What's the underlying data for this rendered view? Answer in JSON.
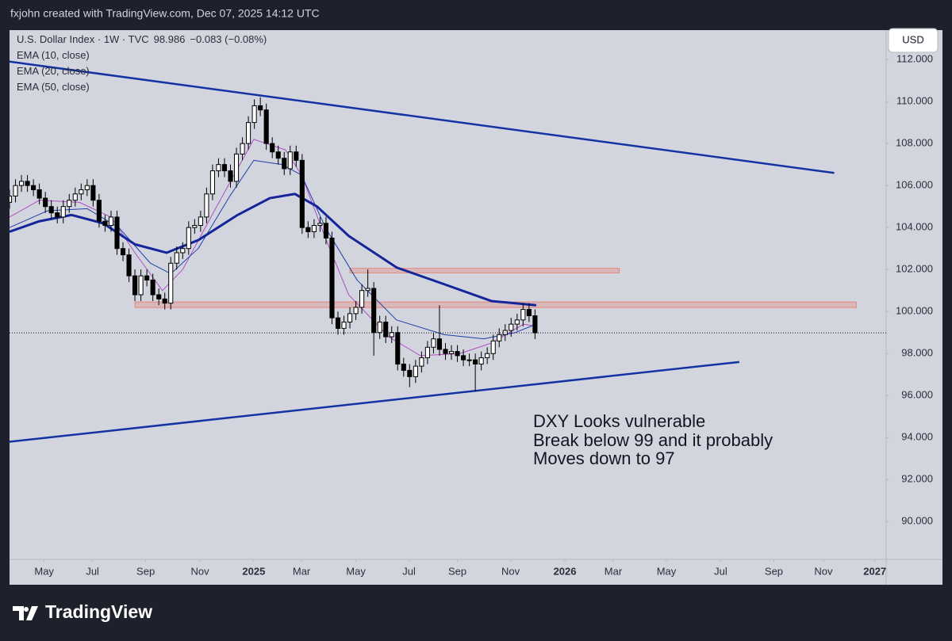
{
  "header": {
    "credit": "fxjohn created with TradingView.com, Dec 07, 2025 14:12 UTC"
  },
  "footer": {
    "brand": "TradingView"
  },
  "chart_data": {
    "type": "candlestick",
    "symbol": "U.S. Dollar Index · 1W · TVC",
    "last": 98.986,
    "change": "−0.083 (−0.08%)",
    "currency": "USD",
    "up_color": "#ffffff",
    "down_color": "#000000",
    "x": [
      0,
      1,
      2,
      3,
      4,
      5,
      6,
      7,
      8,
      9,
      10,
      11,
      12,
      13,
      14,
      15,
      16,
      17,
      18,
      19,
      20,
      21,
      22,
      23,
      24,
      25,
      26,
      27,
      28,
      29,
      30,
      31,
      32,
      33,
      34,
      35,
      36,
      37,
      38,
      39,
      40,
      41,
      42,
      43,
      44,
      45,
      46,
      47,
      48,
      49,
      50,
      51,
      52,
      53,
      54,
      55,
      56,
      57,
      58,
      59,
      60,
      61,
      62,
      63,
      64,
      65,
      66,
      67,
      68,
      69,
      70,
      71,
      72,
      73,
      74,
      75,
      76,
      77,
      78,
      79,
      80,
      81,
      82,
      83,
      84,
      85,
      86,
      87,
      88
    ],
    "open": [
      105.2,
      105.5,
      106.0,
      106.2,
      106.0,
      105.8,
      105.4,
      105.0,
      104.7,
      104.5,
      105.0,
      105.3,
      105.6,
      105.8,
      106.0,
      105.3,
      104.3,
      104.1,
      104.5,
      103.0,
      102.7,
      101.7,
      100.8,
      101.7,
      101.5,
      100.8,
      100.6,
      100.4,
      102.3,
      102.8,
      103.0,
      104.0,
      104.1,
      104.5,
      105.6,
      106.7,
      107.0,
      106.7,
      106.2,
      107.5,
      108.0,
      109.0,
      109.8,
      109.6,
      108.0,
      107.6,
      107.3,
      106.8,
      107.6,
      107.2,
      104.0,
      103.8,
      104.1,
      104.2,
      103.5,
      99.7,
      99.2,
      99.5,
      99.9,
      100.2,
      101.0,
      101.1,
      99.0,
      99.5,
      98.8,
      99.0,
      97.5,
      97.2,
      96.9,
      97.4,
      97.8,
      98.3,
      98.7,
      98.2,
      98.0,
      98.1,
      97.9,
      97.7,
      97.7,
      97.5,
      97.8,
      98.0,
      98.6,
      98.9,
      99.1,
      99.4,
      99.6,
      100.1,
      99.8
    ],
    "high": [
      105.8,
      106.3,
      106.5,
      106.5,
      106.3,
      106.1,
      105.7,
      105.3,
      105.0,
      105.3,
      105.6,
      105.9,
      106.1,
      106.3,
      106.3,
      105.6,
      104.6,
      104.8,
      104.8,
      103.3,
      103.0,
      102.0,
      102.0,
      102.0,
      101.8,
      101.1,
      100.9,
      102.6,
      103.1,
      103.3,
      104.3,
      104.4,
      104.8,
      105.9,
      107.0,
      107.3,
      107.3,
      107.0,
      107.8,
      108.3,
      109.3,
      110.1,
      110.2,
      109.9,
      108.3,
      107.9,
      107.6,
      107.9,
      107.9,
      107.5,
      104.3,
      104.4,
      104.5,
      104.5,
      103.8,
      100.0,
      99.8,
      100.2,
      100.5,
      101.3,
      102.0,
      101.4,
      99.8,
      99.8,
      99.3,
      99.3,
      97.8,
      97.5,
      97.7,
      98.1,
      98.6,
      99.0,
      100.3,
      98.5,
      98.4,
      98.4,
      98.2,
      98.0,
      98.0,
      98.1,
      98.3,
      98.9,
      99.2,
      99.4,
      99.7,
      99.9,
      100.4,
      100.4,
      100.1
    ],
    "low": [
      104.9,
      105.2,
      105.7,
      105.7,
      105.5,
      105.1,
      104.7,
      104.4,
      104.2,
      104.2,
      104.7,
      105.0,
      105.3,
      105.5,
      105.0,
      104.0,
      103.8,
      103.8,
      102.7,
      102.4,
      101.4,
      100.5,
      100.5,
      101.2,
      100.5,
      100.3,
      100.1,
      100.1,
      102.0,
      102.5,
      102.7,
      103.7,
      103.8,
      104.2,
      105.3,
      106.4,
      106.4,
      105.9,
      105.9,
      107.2,
      107.7,
      108.7,
      109.3,
      107.7,
      107.3,
      107.0,
      106.5,
      106.5,
      106.9,
      103.7,
      103.5,
      103.5,
      103.8,
      103.2,
      99.4,
      98.9,
      98.9,
      99.2,
      99.6,
      99.9,
      100.7,
      97.9,
      98.7,
      98.5,
      98.5,
      97.2,
      96.9,
      96.4,
      96.6,
      97.1,
      97.5,
      98.0,
      97.9,
      97.7,
      97.7,
      97.6,
      97.4,
      97.4,
      96.2,
      97.2,
      97.5,
      97.7,
      98.3,
      98.6,
      98.8,
      99.1,
      99.3,
      99.5,
      98.69
    ],
    "close": [
      105.5,
      106.0,
      106.2,
      106.0,
      105.8,
      105.4,
      105.0,
      104.7,
      104.5,
      105.0,
      105.3,
      105.6,
      105.8,
      106.0,
      105.3,
      104.3,
      104.1,
      104.5,
      103.0,
      102.7,
      101.7,
      100.8,
      101.7,
      101.5,
      100.8,
      100.6,
      100.4,
      102.3,
      102.8,
      103.0,
      104.0,
      104.1,
      104.5,
      105.6,
      106.7,
      107.0,
      106.7,
      106.2,
      107.5,
      108.0,
      109.0,
      109.8,
      109.6,
      108.0,
      107.6,
      107.3,
      106.8,
      107.6,
      107.2,
      104.0,
      103.8,
      104.1,
      104.2,
      103.5,
      99.7,
      99.2,
      99.5,
      99.9,
      100.2,
      101.0,
      101.1,
      99.0,
      99.5,
      98.8,
      99.0,
      97.5,
      97.2,
      96.9,
      97.4,
      97.8,
      98.3,
      98.7,
      98.2,
      98.0,
      98.1,
      97.9,
      97.7,
      97.7,
      97.5,
      97.8,
      98.0,
      98.6,
      98.9,
      99.1,
      99.4,
      99.6,
      100.1,
      99.8,
      98.99
    ],
    "indicators": [
      {
        "name": "EMA (10, close)",
        "color": "#b04fc4",
        "width": 1,
        "x": [
          0,
          5.0,
          11.7,
          17.0,
          21.0,
          25.6,
          29.0,
          34.3,
          40.9,
          46.2,
          48.9,
          52.9,
          56.8,
          63.5,
          68.8,
          75.4,
          80.7,
          86.1,
          88.2
        ],
        "values": [
          104.5,
          105.3,
          105.2,
          104.5,
          102.8,
          101.0,
          102.0,
          104.8,
          108.2,
          107.7,
          106.5,
          103.5,
          100.8,
          98.8,
          97.9,
          98.0,
          98.5,
          99.4,
          99.3
        ]
      },
      {
        "name": "EMA (20, close)",
        "color": "#1f3fa8",
        "width": 1,
        "x": [
          0,
          6.4,
          13.0,
          18.3,
          23.6,
          27.0,
          31.6,
          36.9,
          40.9,
          45.6,
          48.9,
          52.9,
          58.2,
          64.8,
          72.8,
          79.4,
          84.7,
          88.2
        ],
        "values": [
          104.0,
          104.8,
          104.9,
          104.0,
          102.3,
          101.8,
          103.0,
          105.5,
          107.2,
          107.0,
          106.5,
          104.0,
          101.5,
          99.6,
          98.9,
          98.7,
          99.0,
          99.4
        ]
      },
      {
        "name": "EMA (50, close)",
        "color": "#14259a",
        "width": 3,
        "x": [
          0,
          5.0,
          10.4,
          15.7,
          21.0,
          26.3,
          31.6,
          38.2,
          43.6,
          47.8,
          51.5,
          56.8,
          64.8,
          72.8,
          80.7,
          88.2
        ],
        "values": [
          103.8,
          104.3,
          104.6,
          104.2,
          103.2,
          102.8,
          103.4,
          104.6,
          105.4,
          105.6,
          105.0,
          103.6,
          102.1,
          101.3,
          100.5,
          100.3
        ]
      }
    ],
    "trendlines": [
      {
        "color": "#1433a3",
        "x": [
          0,
          138.1
        ],
        "values": [
          111.9,
          106.6
        ]
      },
      {
        "color": "#1433a3",
        "x": [
          0,
          122.2
        ],
        "values": [
          93.8,
          97.6
        ]
      }
    ],
    "zones": [
      {
        "color": "#e8857a",
        "x": [
          57.0,
          102.1
        ],
        "values": [
          101.9,
          102.0
        ]
      },
      {
        "color": "#e8857a",
        "x": [
          21.0,
          141.8
        ],
        "values": [
          100.25,
          100.4
        ]
      }
    ],
    "annotation": [
      "DXY Looks vulnerable",
      "Break below 99 and it probably",
      "Moves down to 97"
    ],
    "xlim": [
      0,
      146.8
    ],
    "xticks": [
      {
        "value": 5.8,
        "label": "May"
      },
      {
        "value": 13.9,
        "label": "Jul"
      },
      {
        "value": 22.8,
        "label": "Sep"
      },
      {
        "value": 31.9,
        "label": "Nov"
      },
      {
        "value": 40.9,
        "label": "2025"
      },
      {
        "value": 48.9,
        "label": "Mar"
      },
      {
        "value": 58.0,
        "label": "May"
      },
      {
        "value": 66.9,
        "label": "Jul"
      },
      {
        "value": 75.0,
        "label": "Sep"
      },
      {
        "value": 83.9,
        "label": "Nov"
      },
      {
        "value": 93.0,
        "label": "2026"
      },
      {
        "value": 101.1,
        "label": "Mar"
      },
      {
        "value": 110.0,
        "label": "May"
      },
      {
        "value": 119.1,
        "label": "Jul"
      },
      {
        "value": 128.0,
        "label": "Sep"
      },
      {
        "value": 136.3,
        "label": "Nov"
      },
      {
        "value": 144.9,
        "label": "2027"
      }
    ],
    "ylim": [
      88.2,
      113.4
    ],
    "yticks": [
      {
        "value": 90,
        "label": "90.000"
      },
      {
        "value": 92,
        "label": "92.000"
      },
      {
        "value": 94,
        "label": "94.000"
      },
      {
        "value": 96,
        "label": "96.000"
      },
      {
        "value": 98,
        "label": "98.000"
      },
      {
        "value": 100,
        "label": "100.000"
      },
      {
        "value": 102,
        "label": "102.000"
      },
      {
        "value": 104,
        "label": "104.000"
      },
      {
        "value": 106,
        "label": "106.000"
      },
      {
        "value": 108,
        "label": "108.000"
      },
      {
        "value": 110,
        "label": "110.000"
      },
      {
        "value": 112,
        "label": "112.000"
      }
    ]
  }
}
